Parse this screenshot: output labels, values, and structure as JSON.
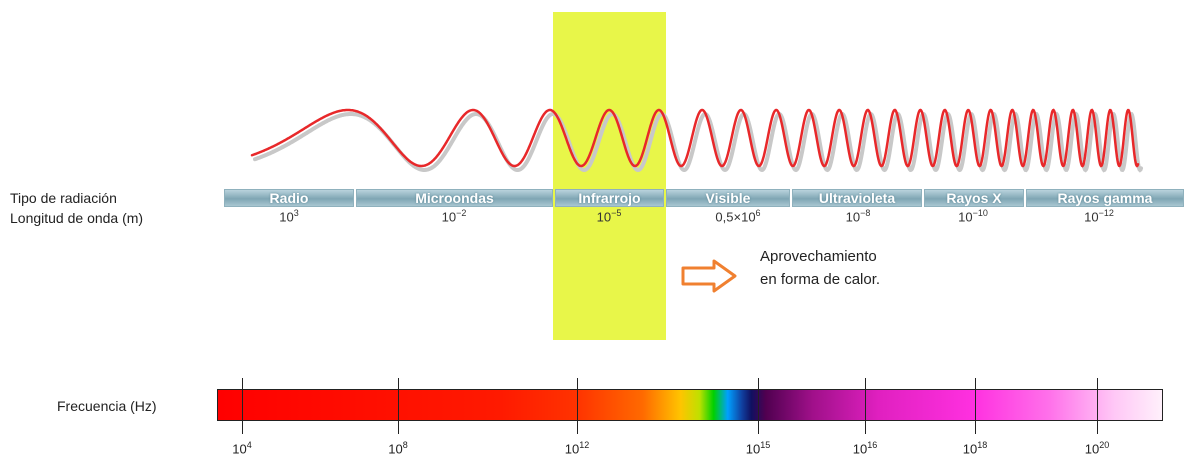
{
  "labels": {
    "tipo": "Tipo de radiación",
    "longitud": "Longitud de onda (m)",
    "frecuencia": "Frecuencia (Hz)"
  },
  "bands": [
    {
      "name": "Radio",
      "wavelength_base": "10",
      "wavelength_exp": "3"
    },
    {
      "name": "Microondas",
      "wavelength_base": "10",
      "wavelength_exp": "−2"
    },
    {
      "name": "Infrarrojo",
      "wavelength_base": "10",
      "wavelength_exp": "−5"
    },
    {
      "name": "Visible",
      "wavelength_base": "0,5×10",
      "wavelength_exp": "6"
    },
    {
      "name": "Ultravioleta",
      "wavelength_base": "10",
      "wavelength_exp": "−8"
    },
    {
      "name": "Rayos X",
      "wavelength_base": "10",
      "wavelength_exp": "−10"
    },
    {
      "name": "Rayos gamma",
      "wavelength_base": "10",
      "wavelength_exp": "−12"
    }
  ],
  "annotation": {
    "line1": "Aprovechamiento",
    "line2": "en forma de calor."
  },
  "frequency_ticks": [
    {
      "base": "10",
      "exp": "4"
    },
    {
      "base": "10",
      "exp": "8"
    },
    {
      "base": "10",
      "exp": "12"
    },
    {
      "base": "10",
      "exp": "15"
    },
    {
      "base": "10",
      "exp": "16"
    },
    {
      "base": "10",
      "exp": "18"
    },
    {
      "base": "10",
      "exp": "20"
    }
  ],
  "colors": {
    "wave": "#e8282a",
    "highlight": "#e6f53a",
    "arrow": "#f08030"
  }
}
